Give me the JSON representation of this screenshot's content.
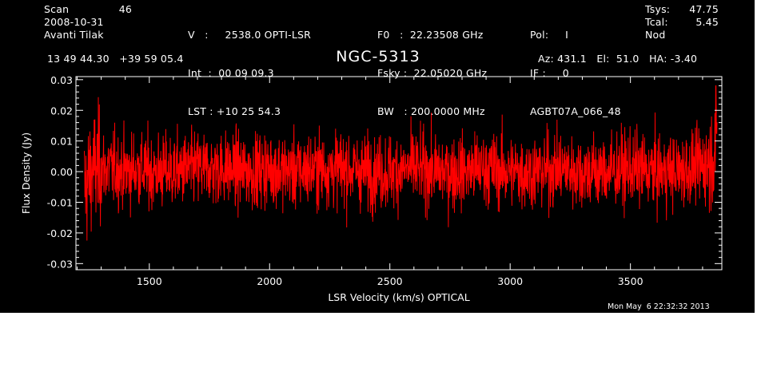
{
  "header": {
    "col1": {
      "scan_label": "Scan",
      "scan_value": "46",
      "date": "2008-10-31",
      "observer": "Avanti Tilak"
    },
    "col2": {
      "line1": "V   :     2538.0 OPTI-LSR",
      "line2": "Int  :  00 09 09.3",
      "line3": "LST : +10 25 54.3"
    },
    "col3": {
      "line1": "F0   :  22.23508 GHz",
      "line2": "Fsky :  22.05020 GHz",
      "line3": "BW   : 200.0000 MHz"
    },
    "col4": {
      "pol": "Pol:     I",
      "if": "IF :     0",
      "project": "AGBT07A_066_48"
    },
    "col5": {
      "tsys_label": "Tsys:",
      "tsys_value": "47.75",
      "tcal_label": "Tcal:",
      "tcal_value": "5.45",
      "mode": "Nod"
    },
    "coords": "13 49 44.30   +39 59 05.4",
    "source": "NGC-5313",
    "azel": "Az: 431.1   El:  51.0   HA: -3.40",
    "timestamp": "Mon May  6 22:32:32 2013"
  },
  "colors": {
    "background": "#000000",
    "axes": "#ffffff",
    "trace": "#ff0000"
  },
  "chart_data": {
    "type": "line",
    "xlabel": "LSR Velocity (km/s) OPTICAL",
    "ylabel": "Flux Density (Jy)",
    "xlim": [
      1195,
      3880
    ],
    "ylim": [
      -0.032,
      0.031
    ],
    "x_ticks": [
      1500,
      2000,
      2500,
      3000,
      3500
    ],
    "x_tick_labels": [
      "1500",
      "2000",
      "2500",
      "3000",
      "3500"
    ],
    "y_ticks": [
      -0.03,
      -0.02,
      -0.01,
      0.0,
      0.01,
      0.02,
      0.03
    ],
    "y_tick_labels": [
      "-0.03",
      "-0.02",
      "-0.01",
      "0.00",
      "0.01",
      "0.02",
      "0.03"
    ],
    "grid": false,
    "series": [
      {
        "x": [
          1230,
          1240,
          1250,
          1260,
          1280,
          1300,
          1350,
          1400,
          1450,
          1500,
          1600,
          1700,
          1800,
          1900,
          2000,
          2100,
          2200,
          2300,
          2400,
          2500,
          2600,
          2700,
          2800,
          2900,
          3000,
          3100,
          3200,
          3300,
          3400,
          3500,
          3600,
          3700,
          3750,
          3800,
          3820,
          3840,
          3850,
          3860
        ],
        "y": [
          -0.006,
          -0.004,
          -0.002,
          0.0,
          0.001,
          0.001,
          0.001,
          0.0,
          0.001,
          0.0,
          0.0,
          0.001,
          0.001,
          0.0,
          0.001,
          0.0,
          0.001,
          0.001,
          0.0,
          0.0,
          0.001,
          0.0,
          0.0,
          0.001,
          0.0,
          0.0,
          0.001,
          0.0,
          0.0,
          0.001,
          0.0,
          0.0,
          0.001,
          0.002,
          0.003,
          0.005,
          0.008,
          0.012
        ],
        "noise_sigma_jy": 0.006
      }
    ]
  }
}
